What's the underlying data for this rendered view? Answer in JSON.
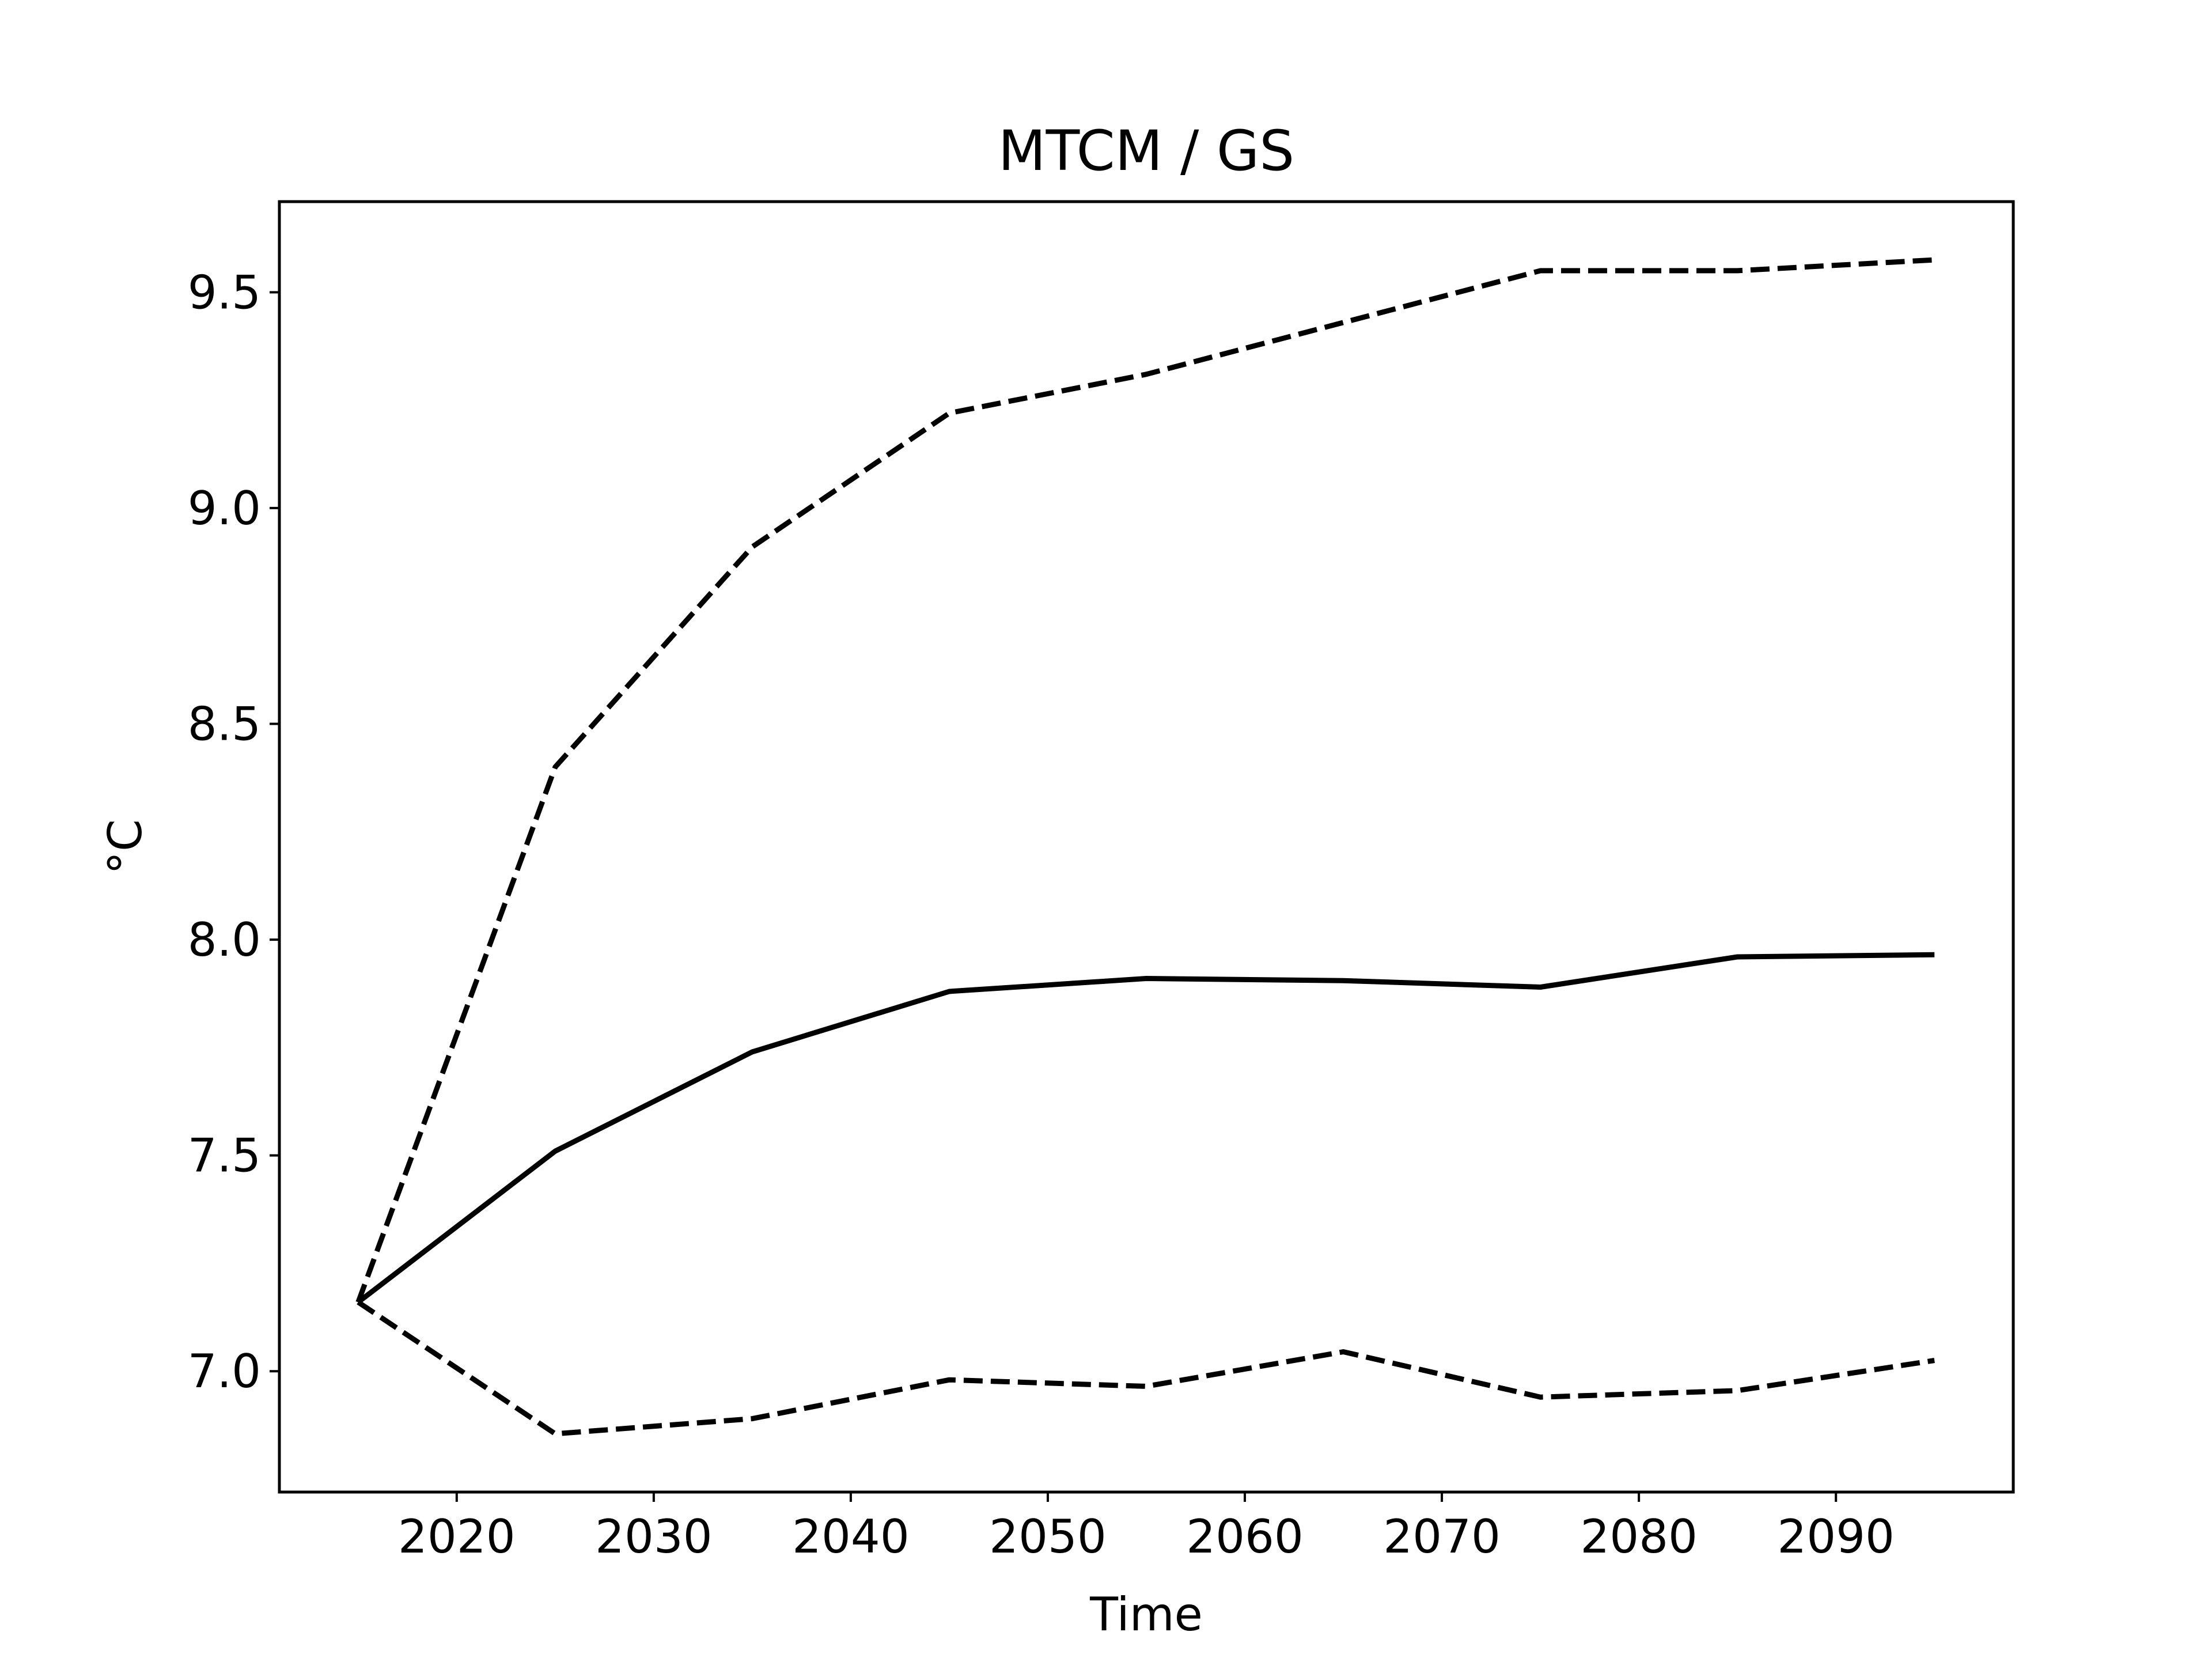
{
  "chart_data": {
    "type": "line",
    "title": "MTCM / GS",
    "xlabel": "Time",
    "ylabel": "°C",
    "x": [
      2015,
      2025,
      2035,
      2045,
      2055,
      2065,
      2075,
      2085,
      2095
    ],
    "series": [
      {
        "style": "solid",
        "values": [
          7.16,
          7.51,
          7.74,
          7.88,
          7.91,
          7.905,
          7.89,
          7.96,
          7.965
        ]
      },
      {
        "style": "dashed",
        "values": [
          7.16,
          8.4,
          8.91,
          9.22,
          9.31,
          9.43,
          9.55,
          9.55,
          9.575
        ]
      },
      {
        "style": "dashed",
        "values": [
          7.16,
          6.855,
          6.89,
          6.98,
          6.965,
          7.045,
          6.94,
          6.955,
          7.025
        ]
      }
    ],
    "xlim": [
      2011,
      2099
    ],
    "ylim": [
      6.72,
      9.71
    ],
    "xticks": [
      2020,
      2030,
      2040,
      2050,
      2060,
      2070,
      2080,
      2090
    ],
    "yticks": [
      7.0,
      7.5,
      8.0,
      8.5,
      9.0,
      9.5
    ],
    "xtick_labels": [
      "2020",
      "2030",
      "2040",
      "2050",
      "2060",
      "2070",
      "2080",
      "2090"
    ],
    "ytick_labels": [
      "7.0",
      "7.5",
      "8.0",
      "8.5",
      "9.0",
      "9.5"
    ],
    "grid": false,
    "line_color": "#000000"
  }
}
